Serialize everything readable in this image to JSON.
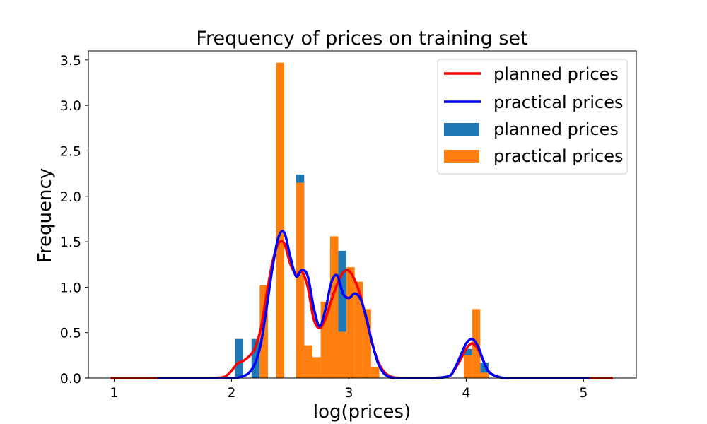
{
  "chart_data": {
    "type": "bar",
    "title": "Frequency of prices on training set",
    "xlabel": "log(prices)",
    "ylabel": "Frequency",
    "xlim": [
      0.78,
      5.45
    ],
    "ylim": [
      0,
      3.6
    ],
    "xticks": [
      1,
      2,
      3,
      4,
      5
    ],
    "yticks": [
      0.0,
      0.5,
      1.0,
      1.5,
      2.0,
      2.5,
      3.0,
      3.5
    ],
    "ytick_labels": [
      "0.0",
      "0.5",
      "1.0",
      "1.5",
      "2.0",
      "2.5",
      "3.0",
      "3.5"
    ],
    "grid": false,
    "legend_position": "top-right",
    "legend": [
      {
        "label": "planned prices",
        "kind": "line",
        "color": "#ff0000"
      },
      {
        "label": "practical prices",
        "kind": "line",
        "color": "#0000ff"
      },
      {
        "label": "planned prices",
        "kind": "bar",
        "color": "#1f77b4"
      },
      {
        "label": "practical prices",
        "kind": "bar",
        "color": "#ff7f0e"
      }
    ],
    "histograms": [
      {
        "name": "planned prices",
        "color": "#1f77b4",
        "bins": [
          {
            "x0": 2.03,
            "x1": 2.1,
            "value": 0.43
          },
          {
            "x0": 2.17,
            "x1": 2.24,
            "value": 0.43
          },
          {
            "x0": 2.55,
            "x1": 2.62,
            "value": 2.24
          },
          {
            "x0": 2.84,
            "x1": 2.91,
            "value": 1.44
          },
          {
            "x0": 2.91,
            "x1": 2.98,
            "value": 1.4
          },
          {
            "x0": 3.98,
            "x1": 4.05,
            "value": 0.32
          },
          {
            "x0": 4.12,
            "x1": 4.19,
            "value": 0.17
          }
        ]
      },
      {
        "name": "practical prices",
        "color": "#ff7f0e",
        "bins": [
          {
            "x0": 2.24,
            "x1": 2.31,
            "value": 1.02
          },
          {
            "x0": 2.38,
            "x1": 2.45,
            "value": 3.47
          },
          {
            "x0": 2.55,
            "x1": 2.62,
            "value": 2.15
          },
          {
            "x0": 2.62,
            "x1": 2.69,
            "value": 0.36
          },
          {
            "x0": 2.69,
            "x1": 2.76,
            "value": 0.23
          },
          {
            "x0": 2.76,
            "x1": 2.84,
            "value": 0.84
          },
          {
            "x0": 2.84,
            "x1": 2.91,
            "value": 1.56
          },
          {
            "x0": 2.91,
            "x1": 2.98,
            "value": 0.51
          },
          {
            "x0": 2.98,
            "x1": 3.05,
            "value": 1.22
          },
          {
            "x0": 3.05,
            "x1": 3.12,
            "value": 1.06
          },
          {
            "x0": 3.12,
            "x1": 3.19,
            "value": 0.76
          },
          {
            "x0": 3.19,
            "x1": 3.26,
            "value": 0.12
          },
          {
            "x0": 3.98,
            "x1": 4.05,
            "value": 0.25
          },
          {
            "x0": 4.05,
            "x1": 4.12,
            "value": 0.76
          },
          {
            "x0": 4.12,
            "x1": 4.19,
            "value": 0.06
          }
        ]
      }
    ],
    "series": [
      {
        "name": "planned prices",
        "color": "#ff0000",
        "x": [
          0.97,
          1.6,
          1.8,
          1.9,
          1.95,
          2.0,
          2.05,
          2.1,
          2.15,
          2.2,
          2.25,
          2.3,
          2.35,
          2.4,
          2.45,
          2.5,
          2.55,
          2.6,
          2.65,
          2.7,
          2.75,
          2.8,
          2.85,
          2.9,
          2.95,
          3.0,
          3.05,
          3.1,
          3.15,
          3.2,
          3.25,
          3.3,
          3.35,
          3.4,
          3.5,
          3.7,
          3.85,
          3.9,
          3.95,
          4.0,
          4.05,
          4.1,
          4.15,
          4.2,
          4.3,
          4.4,
          4.6,
          5.0,
          5.25
        ],
        "y": [
          0.0,
          0.0,
          0.0,
          0.005,
          0.02,
          0.08,
          0.16,
          0.19,
          0.24,
          0.33,
          0.55,
          0.93,
          1.28,
          1.48,
          1.48,
          1.26,
          1.14,
          1.17,
          1.0,
          0.65,
          0.55,
          0.65,
          0.85,
          1.03,
          1.16,
          1.18,
          1.08,
          0.9,
          0.64,
          0.38,
          0.18,
          0.07,
          0.02,
          0.005,
          0.0,
          0.0,
          0.02,
          0.09,
          0.2,
          0.32,
          0.38,
          0.32,
          0.18,
          0.06,
          0.005,
          0.0,
          0.0,
          0.0,
          0.0
        ]
      },
      {
        "name": "practical prices",
        "color": "#0000ff",
        "x": [
          1.37,
          1.8,
          1.9,
          2.0,
          2.05,
          2.1,
          2.15,
          2.2,
          2.25,
          2.3,
          2.35,
          2.4,
          2.45,
          2.5,
          2.55,
          2.6,
          2.65,
          2.7,
          2.75,
          2.8,
          2.85,
          2.9,
          2.95,
          3.0,
          3.05,
          3.1,
          3.15,
          3.2,
          3.25,
          3.3,
          3.35,
          3.4,
          3.5,
          3.7,
          3.85,
          3.9,
          3.95,
          4.0,
          4.05,
          4.1,
          4.15,
          4.2,
          4.3,
          4.4,
          4.6,
          5.0,
          5.03
        ],
        "y": [
          0.0,
          0.0,
          0.0,
          0.0,
          0.005,
          0.02,
          0.06,
          0.16,
          0.38,
          0.78,
          1.22,
          1.55,
          1.6,
          1.34,
          1.12,
          1.19,
          1.12,
          0.78,
          0.57,
          0.75,
          1.05,
          1.13,
          0.93,
          0.88,
          0.93,
          0.87,
          0.66,
          0.38,
          0.16,
          0.05,
          0.01,
          0.0,
          0.0,
          0.0,
          0.02,
          0.1,
          0.24,
          0.38,
          0.43,
          0.35,
          0.18,
          0.06,
          0.005,
          0.0,
          0.0,
          0.0,
          0.0
        ]
      }
    ]
  }
}
